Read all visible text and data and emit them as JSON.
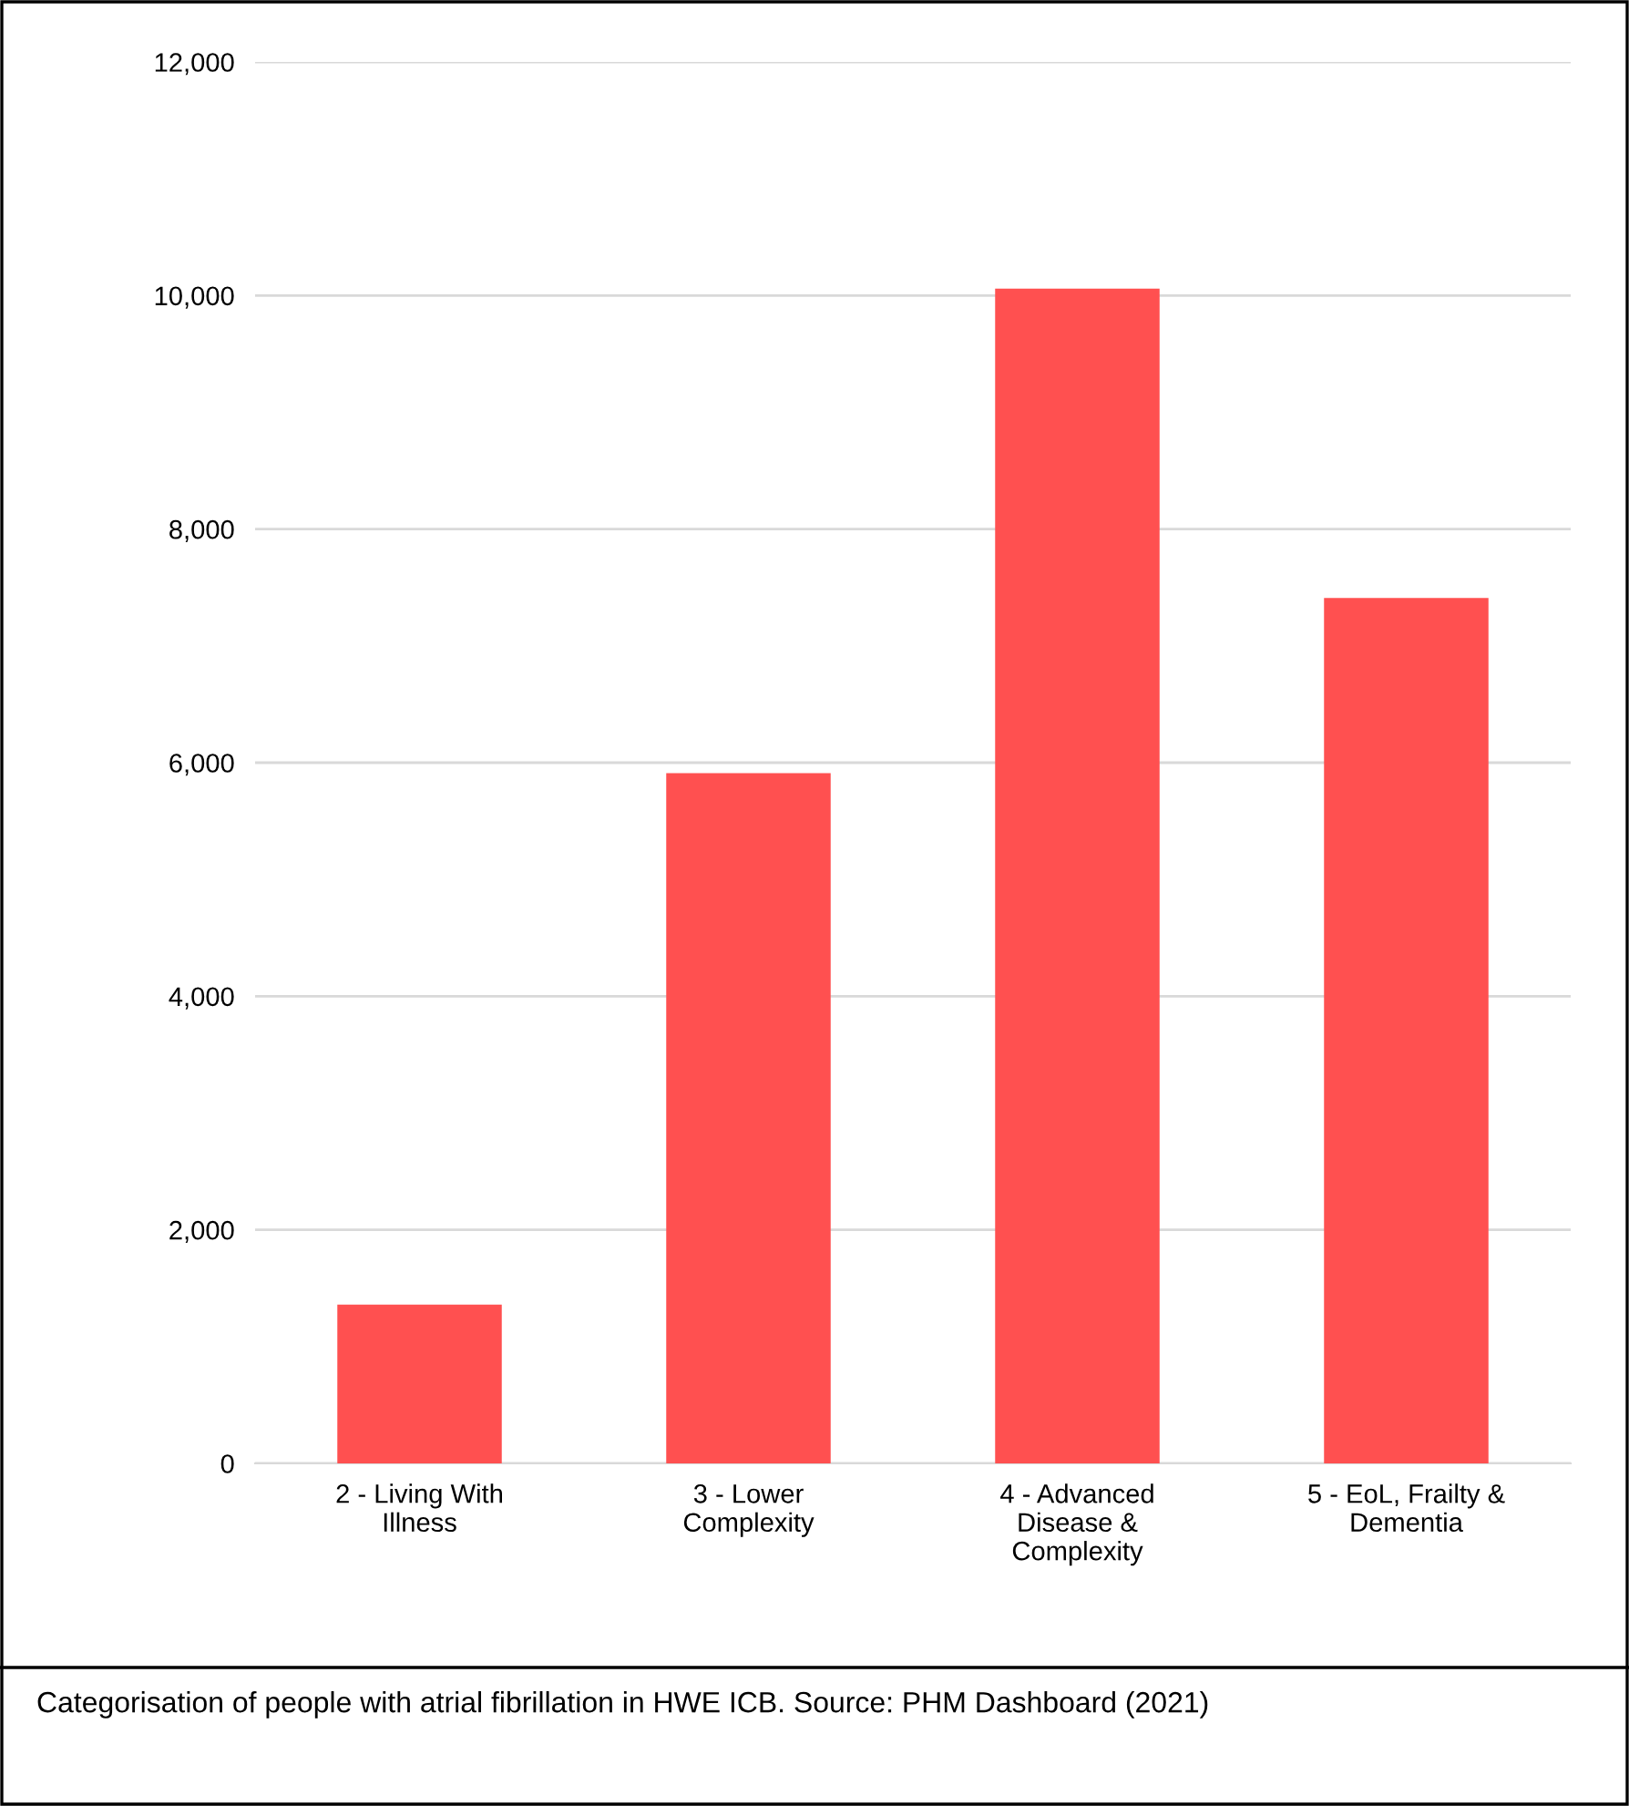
{
  "chart_data": {
    "type": "bar",
    "categories": [
      "2 - Living With Illness",
      "3 - Lower Complexity",
      "4 - Advanced Disease & Complexity",
      "5 - EoL, Frailty & Dementia"
    ],
    "values": [
      1360,
      5910,
      10060,
      7410
    ],
    "color": "#ff5050",
    "ylim": [
      0,
      12000
    ],
    "yticks": [
      {
        "value": 0,
        "label": "0"
      },
      {
        "value": 2000,
        "label": "2,000"
      },
      {
        "value": 4000,
        "label": "4,000"
      },
      {
        "value": 6000,
        "label": "6,000"
      },
      {
        "value": 8000,
        "label": "8,000"
      },
      {
        "value": 10000,
        "label": "10,000"
      },
      {
        "value": 12000,
        "label": "12,000"
      }
    ],
    "grid": "y",
    "annotations": [
      "Categorisation of people with atrial fibrillation in HWE ICB. Source: PHM Dashboard (2021)"
    ]
  }
}
